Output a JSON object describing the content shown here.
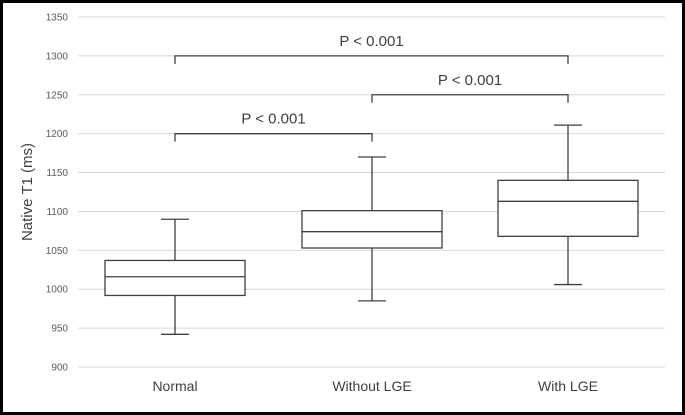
{
  "chart_data": {
    "type": "box",
    "ylabel": "Native T1 (ms)",
    "xlabel": "",
    "ylim": [
      900,
      1350
    ],
    "yticks": [
      900,
      950,
      1000,
      1050,
      1100,
      1150,
      1200,
      1250,
      1300,
      1350
    ],
    "grid": true,
    "categories": [
      "Normal",
      "Without LGE",
      "With LGE"
    ],
    "boxes": [
      {
        "category": "Normal",
        "min": 942,
        "q1": 992,
        "median": 1016,
        "q3": 1037,
        "max": 1090
      },
      {
        "category": "Without LGE",
        "min": 985,
        "q1": 1053,
        "median": 1074,
        "q3": 1101,
        "max": 1170
      },
      {
        "category": "With LGE",
        "min": 1006,
        "q1": 1068,
        "median": 1113,
        "q3": 1140,
        "max": 1211
      }
    ],
    "annotations": [
      {
        "label": "P < 0.001",
        "from": "Normal",
        "to": "Without LGE",
        "y": 1200
      },
      {
        "label": "P < 0.001",
        "from": "Without LGE",
        "to": "With LGE",
        "y": 1250
      },
      {
        "label": "P < 0.001",
        "from": "Normal",
        "to": "With LGE",
        "y": 1300
      }
    ]
  }
}
